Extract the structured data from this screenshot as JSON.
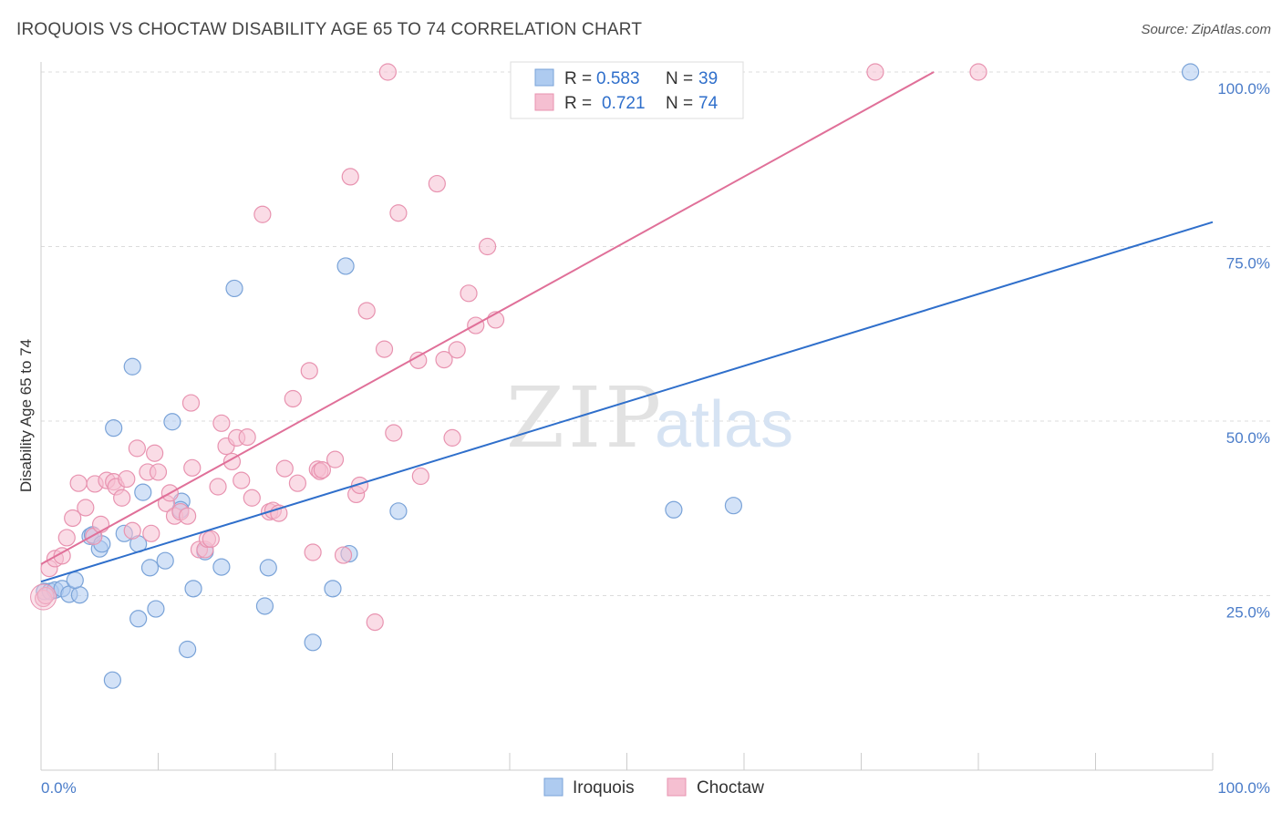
{
  "header": {
    "title": "IROQUOIS VS CHOCTAW DISABILITY AGE 65 TO 74 CORRELATION CHART",
    "source": "Source: ZipAtlas.com"
  },
  "watermark": {
    "zip": "ZIP",
    "atlas": "atlas"
  },
  "colors": {
    "iroquois_fill": "#aecbf0",
    "iroquois_stroke": "#7aa3d8",
    "iroquois_line": "#2f6fcb",
    "choctaw_fill": "#f5bfd1",
    "choctaw_stroke": "#e893b0",
    "choctaw_line": "#e07099",
    "value_blue": "#2f6fcb",
    "grid": "#dcdcdc"
  },
  "legend_top": {
    "rows": [
      {
        "r_label": "R = ",
        "r_value": "0.583",
        "n_label": "N = ",
        "n_value": "39"
      },
      {
        "r_label": "R = ",
        "r_value": "0.721",
        "n_label": "N = ",
        "n_value": "74"
      }
    ]
  },
  "legend_bottom": {
    "items": [
      "Iroquois",
      "Choctaw"
    ]
  },
  "chart_data": {
    "type": "scatter",
    "title": "IROQUOIS VS CHOCTAW DISABILITY AGE 65 TO 74 CORRELATION CHART",
    "xlabel": "",
    "ylabel": "Disability Age 65 to 74",
    "xlim": [
      0,
      100
    ],
    "ylim": [
      0,
      102
    ],
    "x_tick_labels": [
      "0.0%",
      "100.0%"
    ],
    "y_ticks": [
      25,
      50,
      75,
      100
    ],
    "y_tick_labels": [
      "25.0%",
      "50.0%",
      "75.0%",
      "100.0%"
    ],
    "grid": true,
    "legend_placement": "top-center",
    "series": [
      {
        "name": "Iroquois",
        "r": 0.583,
        "n": 39,
        "trend": {
          "x": [
            0,
            100
          ],
          "y": [
            27.0,
            78.5
          ]
        },
        "points": [
          [
            0.3,
            25.6
          ],
          [
            0.8,
            25.6
          ],
          [
            1.2,
            25.8
          ],
          [
            1.8,
            26.0
          ],
          [
            2.4,
            25.2
          ],
          [
            3.3,
            25.1
          ],
          [
            2.9,
            27.2
          ],
          [
            4.2,
            33.5
          ],
          [
            4.4,
            33.7
          ],
          [
            5.0,
            31.7
          ],
          [
            5.2,
            32.4
          ],
          [
            6.2,
            49.0
          ],
          [
            6.1,
            12.9
          ],
          [
            7.1,
            33.9
          ],
          [
            7.8,
            57.8
          ],
          [
            8.3,
            32.4
          ],
          [
            8.3,
            21.7
          ],
          [
            8.7,
            39.8
          ],
          [
            9.3,
            29.0
          ],
          [
            9.8,
            23.1
          ],
          [
            10.6,
            30.0
          ],
          [
            11.2,
            49.9
          ],
          [
            12.0,
            38.5
          ],
          [
            11.9,
            37.3
          ],
          [
            12.5,
            17.3
          ],
          [
            13.0,
            26.0
          ],
          [
            14.0,
            31.3
          ],
          [
            15.4,
            29.1
          ],
          [
            16.5,
            69.0
          ],
          [
            19.1,
            23.5
          ],
          [
            19.4,
            29.0
          ],
          [
            23.2,
            18.3
          ],
          [
            24.9,
            26.0
          ],
          [
            26.0,
            72.2
          ],
          [
            26.3,
            31.0
          ],
          [
            30.5,
            37.1
          ],
          [
            54.0,
            37.3
          ],
          [
            59.1,
            37.9
          ],
          [
            98.1,
            100.0
          ]
        ]
      },
      {
        "name": "Choctaw",
        "r": 0.721,
        "n": 74,
        "trend": {
          "x": [
            0,
            76.2
          ],
          "y": [
            29.5,
            100.0
          ]
        },
        "points": [
          [
            0.2,
            24.6
          ],
          [
            0.4,
            25.0
          ],
          [
            0.7,
            28.9
          ],
          [
            1.2,
            30.3
          ],
          [
            1.8,
            30.7
          ],
          [
            2.2,
            33.3
          ],
          [
            2.7,
            36.1
          ],
          [
            3.2,
            41.1
          ],
          [
            3.8,
            37.6
          ],
          [
            4.5,
            33.5
          ],
          [
            4.6,
            41.0
          ],
          [
            5.1,
            35.2
          ],
          [
            5.6,
            41.5
          ],
          [
            6.2,
            41.3
          ],
          [
            6.4,
            40.6
          ],
          [
            6.9,
            39.0
          ],
          [
            7.3,
            41.7
          ],
          [
            7.8,
            34.3
          ],
          [
            8.2,
            46.1
          ],
          [
            9.1,
            42.7
          ],
          [
            9.4,
            33.9
          ],
          [
            9.7,
            45.4
          ],
          [
            10.0,
            42.7
          ],
          [
            10.7,
            38.2
          ],
          [
            11.0,
            39.7
          ],
          [
            11.4,
            36.4
          ],
          [
            11.9,
            37.0
          ],
          [
            12.5,
            36.4
          ],
          [
            12.8,
            52.6
          ],
          [
            12.9,
            43.3
          ],
          [
            13.5,
            31.6
          ],
          [
            14.0,
            31.6
          ],
          [
            14.2,
            33.1
          ],
          [
            14.5,
            33.1
          ],
          [
            15.1,
            40.6
          ],
          [
            15.4,
            49.7
          ],
          [
            15.8,
            46.4
          ],
          [
            16.3,
            44.2
          ],
          [
            16.7,
            47.6
          ],
          [
            17.1,
            41.5
          ],
          [
            17.6,
            47.7
          ],
          [
            18.0,
            39.0
          ],
          [
            18.9,
            79.6
          ],
          [
            19.5,
            37.0
          ],
          [
            19.8,
            37.2
          ],
          [
            20.3,
            36.8
          ],
          [
            20.8,
            43.2
          ],
          [
            21.5,
            53.2
          ],
          [
            21.9,
            41.1
          ],
          [
            22.9,
            57.2
          ],
          [
            23.2,
            31.2
          ],
          [
            23.6,
            43.1
          ],
          [
            23.8,
            42.8
          ],
          [
            24.0,
            43.0
          ],
          [
            25.1,
            44.5
          ],
          [
            25.8,
            30.8
          ],
          [
            26.4,
            85.0
          ],
          [
            26.9,
            39.5
          ],
          [
            27.2,
            40.8
          ],
          [
            27.8,
            65.8
          ],
          [
            28.5,
            21.2
          ],
          [
            29.3,
            60.3
          ],
          [
            30.1,
            48.3
          ],
          [
            30.5,
            79.8
          ],
          [
            32.2,
            58.7
          ],
          [
            32.4,
            42.1
          ],
          [
            33.8,
            84.0
          ],
          [
            34.4,
            58.8
          ],
          [
            35.1,
            47.6
          ],
          [
            35.5,
            60.2
          ],
          [
            36.5,
            68.3
          ],
          [
            37.1,
            63.7
          ],
          [
            38.1,
            75.0
          ],
          [
            38.8,
            64.5
          ]
        ]
      }
    ],
    "extra_top_points_choctaw": [
      [
        29.6,
        100.0
      ],
      [
        71.2,
        100.0
      ],
      [
        80.0,
        100.0
      ]
    ]
  }
}
